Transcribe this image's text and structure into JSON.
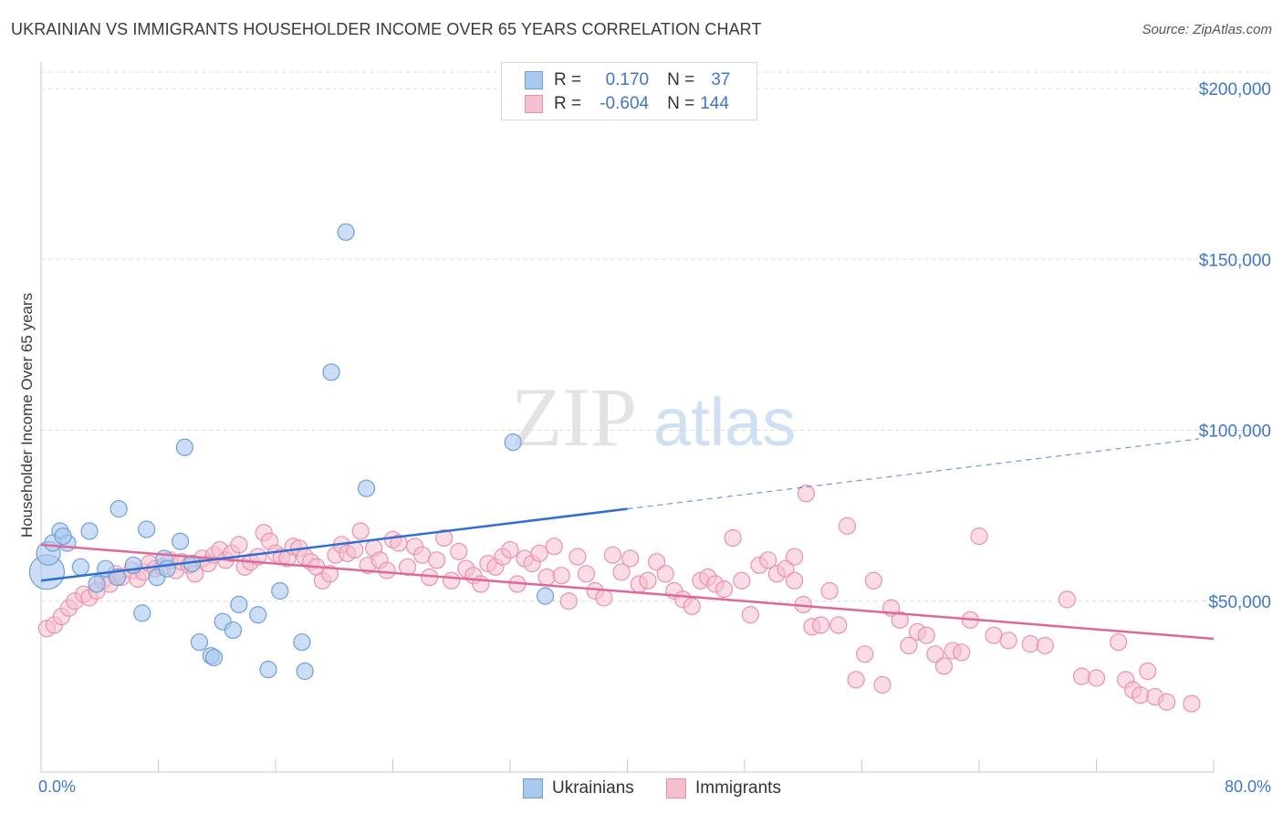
{
  "header": {
    "title": "UKRAINIAN VS IMMIGRANTS HOUSEHOLDER INCOME OVER 65 YEARS CORRELATION CHART",
    "source": "Source: ZipAtlas.com"
  },
  "watermark": {
    "zip": "ZIP",
    "atlas": "atlas"
  },
  "legend": {
    "rows": [
      {
        "r_label": "R =",
        "r_value": "0.170",
        "n_label": "N =",
        "n_value": "37"
      },
      {
        "r_label": "R =",
        "r_value": "-0.604",
        "n_label": "N =",
        "n_value": "144"
      }
    ]
  },
  "colors": {
    "ukrainians_fill": "#a9c8ee",
    "ukrainians_stroke": "#6f9fd8",
    "ukrainians_line": "#2f6fd0",
    "immigrants_fill": "#f6bfd0",
    "immigrants_stroke": "#e892ae",
    "immigrants_line": "#e0679a",
    "tick_text": "#3f77c6",
    "grid": "#dddddd"
  },
  "chart_data": {
    "type": "scatter",
    "title": "UKRAINIAN VS IMMIGRANTS HOUSEHOLDER INCOME OVER 65 YEARS CORRELATION CHART",
    "xlabel": "",
    "ylabel": "Householder Income Over 65 years",
    "xlim": [
      0,
      80
    ],
    "ylim": [
      0,
      205000
    ],
    "x_tick_labels": [
      "0.0%",
      "80.0%"
    ],
    "y_ticks": [
      50000,
      100000,
      150000,
      200000
    ],
    "y_tick_labels": [
      "$50,000",
      "$100,000",
      "$150,000",
      "$200,000"
    ],
    "grid": true,
    "legend_position": "top-center",
    "series": [
      {
        "name": "Ukrainians",
        "points": [
          [
            0.4,
            58500
          ],
          [
            0.5,
            64000
          ],
          [
            1.3,
            70500
          ],
          [
            1.8,
            67000
          ],
          [
            3.3,
            70500
          ],
          [
            2.7,
            60000
          ],
          [
            3.8,
            55000
          ],
          [
            4.4,
            59500
          ],
          [
            5.2,
            57000
          ],
          [
            5.3,
            77000
          ],
          [
            6.3,
            60500
          ],
          [
            6.9,
            46500
          ],
          [
            7.2,
            71000
          ],
          [
            7.9,
            57000
          ],
          [
            8.4,
            62500
          ],
          [
            8.6,
            59500
          ],
          [
            9.5,
            67500
          ],
          [
            9.8,
            95000
          ],
          [
            10.3,
            61000
          ],
          [
            10.8,
            38000
          ],
          [
            11.6,
            34000
          ],
          [
            11.8,
            33500
          ],
          [
            12.4,
            44000
          ],
          [
            13.1,
            41500
          ],
          [
            13.5,
            49000
          ],
          [
            14.8,
            46000
          ],
          [
            15.5,
            30000
          ],
          [
            16.3,
            53000
          ],
          [
            17.8,
            38000
          ],
          [
            18.0,
            29500
          ],
          [
            19.8,
            117000
          ],
          [
            20.8,
            158000
          ],
          [
            22.2,
            83000
          ],
          [
            32.2,
            96500
          ],
          [
            34.4,
            51500
          ],
          [
            0.8,
            67000
          ],
          [
            1.5,
            69000
          ]
        ]
      },
      {
        "name": "Immigrants",
        "points": [
          [
            0.4,
            42000
          ],
          [
            0.9,
            43000
          ],
          [
            1.4,
            45500
          ],
          [
            1.9,
            48000
          ],
          [
            2.3,
            50000
          ],
          [
            2.9,
            52000
          ],
          [
            3.3,
            51000
          ],
          [
            3.8,
            53000
          ],
          [
            4.2,
            56000
          ],
          [
            4.7,
            55000
          ],
          [
            5.1,
            58000
          ],
          [
            5.5,
            57000
          ],
          [
            6.2,
            59000
          ],
          [
            6.6,
            56500
          ],
          [
            7.0,
            58500
          ],
          [
            7.4,
            61000
          ],
          [
            7.8,
            59500
          ],
          [
            8.3,
            60000
          ],
          [
            8.8,
            62000
          ],
          [
            9.2,
            59000
          ],
          [
            9.6,
            61500
          ],
          [
            10.1,
            60500
          ],
          [
            10.5,
            58000
          ],
          [
            11.0,
            62500
          ],
          [
            11.4,
            61000
          ],
          [
            11.8,
            63500
          ],
          [
            12.2,
            65000
          ],
          [
            12.6,
            62000
          ],
          [
            13.0,
            64000
          ],
          [
            13.5,
            66500
          ],
          [
            13.9,
            60000
          ],
          [
            14.3,
            61500
          ],
          [
            14.8,
            63000
          ],
          [
            15.2,
            70000
          ],
          [
            15.6,
            67500
          ],
          [
            16.0,
            64000
          ],
          [
            16.4,
            63000
          ],
          [
            16.8,
            62500
          ],
          [
            17.2,
            66000
          ],
          [
            17.6,
            65500
          ],
          [
            18.0,
            63000
          ],
          [
            18.4,
            61500
          ],
          [
            18.8,
            60000
          ],
          [
            19.2,
            56000
          ],
          [
            19.7,
            58000
          ],
          [
            20.1,
            63500
          ],
          [
            20.5,
            66500
          ],
          [
            20.9,
            64000
          ],
          [
            21.4,
            65000
          ],
          [
            21.8,
            70500
          ],
          [
            22.3,
            60500
          ],
          [
            22.7,
            65500
          ],
          [
            23.1,
            62000
          ],
          [
            23.6,
            59000
          ],
          [
            24.0,
            68000
          ],
          [
            24.4,
            67000
          ],
          [
            25.0,
            60000
          ],
          [
            25.5,
            66000
          ],
          [
            26.0,
            63500
          ],
          [
            26.5,
            57000
          ],
          [
            27.0,
            62000
          ],
          [
            27.5,
            68500
          ],
          [
            28.0,
            56000
          ],
          [
            28.5,
            64500
          ],
          [
            29.0,
            59500
          ],
          [
            29.5,
            57500
          ],
          [
            30.0,
            55000
          ],
          [
            30.5,
            61000
          ],
          [
            31.0,
            60000
          ],
          [
            31.5,
            63000
          ],
          [
            32.0,
            65000
          ],
          [
            32.5,
            55000
          ],
          [
            33.0,
            62500
          ],
          [
            33.5,
            61000
          ],
          [
            34.0,
            64000
          ],
          [
            34.5,
            57000
          ],
          [
            35.0,
            66000
          ],
          [
            35.5,
            57500
          ],
          [
            36.0,
            50000
          ],
          [
            36.6,
            63000
          ],
          [
            37.2,
            58000
          ],
          [
            37.8,
            53000
          ],
          [
            38.4,
            51000
          ],
          [
            39.0,
            63500
          ],
          [
            39.6,
            58500
          ],
          [
            40.2,
            62500
          ],
          [
            40.8,
            55000
          ],
          [
            41.4,
            56000
          ],
          [
            42.0,
            61500
          ],
          [
            42.6,
            58000
          ],
          [
            43.2,
            53000
          ],
          [
            43.8,
            50500
          ],
          [
            44.4,
            48500
          ],
          [
            45.0,
            56000
          ],
          [
            45.5,
            57000
          ],
          [
            46.0,
            55000
          ],
          [
            46.6,
            53500
          ],
          [
            47.2,
            68500
          ],
          [
            47.8,
            56000
          ],
          [
            48.4,
            46000
          ],
          [
            49.0,
            60500
          ],
          [
            49.6,
            62000
          ],
          [
            50.2,
            58000
          ],
          [
            50.8,
            59500
          ],
          [
            51.4,
            56000
          ],
          [
            52.0,
            49000
          ],
          [
            52.6,
            42500
          ],
          [
            53.2,
            43000
          ],
          [
            53.8,
            53000
          ],
          [
            54.4,
            43000
          ],
          [
            55.0,
            72000
          ],
          [
            55.6,
            27000
          ],
          [
            56.2,
            34500
          ],
          [
            56.8,
            56000
          ],
          [
            57.4,
            25500
          ],
          [
            58.0,
            48000
          ],
          [
            58.6,
            44500
          ],
          [
            59.2,
            37000
          ],
          [
            59.8,
            41000
          ],
          [
            60.4,
            40000
          ],
          [
            61.0,
            34500
          ],
          [
            61.6,
            31000
          ],
          [
            62.2,
            35500
          ],
          [
            62.8,
            35000
          ],
          [
            63.4,
            44500
          ],
          [
            64.0,
            69000
          ],
          [
            65.0,
            40000
          ],
          [
            66.0,
            38500
          ],
          [
            67.5,
            37500
          ],
          [
            68.5,
            37000
          ],
          [
            70.0,
            50500
          ],
          [
            71.0,
            28000
          ],
          [
            72.0,
            27500
          ],
          [
            73.5,
            38000
          ],
          [
            74.0,
            27000
          ],
          [
            74.5,
            24000
          ],
          [
            75.0,
            22500
          ],
          [
            75.5,
            29500
          ],
          [
            76.0,
            22000
          ],
          [
            76.8,
            20500
          ],
          [
            78.5,
            20000
          ],
          [
            52.2,
            81500
          ],
          [
            51.4,
            63000
          ]
        ]
      }
    ],
    "trend_lines": [
      {
        "name": "Ukrainians",
        "solid": [
          [
            0,
            56000
          ],
          [
            40,
            77000
          ]
        ],
        "dashed": [
          [
            40,
            77000
          ],
          [
            79,
            97500
          ]
        ]
      },
      {
        "name": "Immigrants",
        "solid": [
          [
            0,
            66500
          ],
          [
            80,
            39000
          ]
        ]
      }
    ]
  },
  "bottom_legend": {
    "ukrainians": "Ukrainians",
    "immigrants": "Immigrants"
  },
  "x_axis": {
    "left_label": "0.0%",
    "right_label": "80.0%"
  }
}
